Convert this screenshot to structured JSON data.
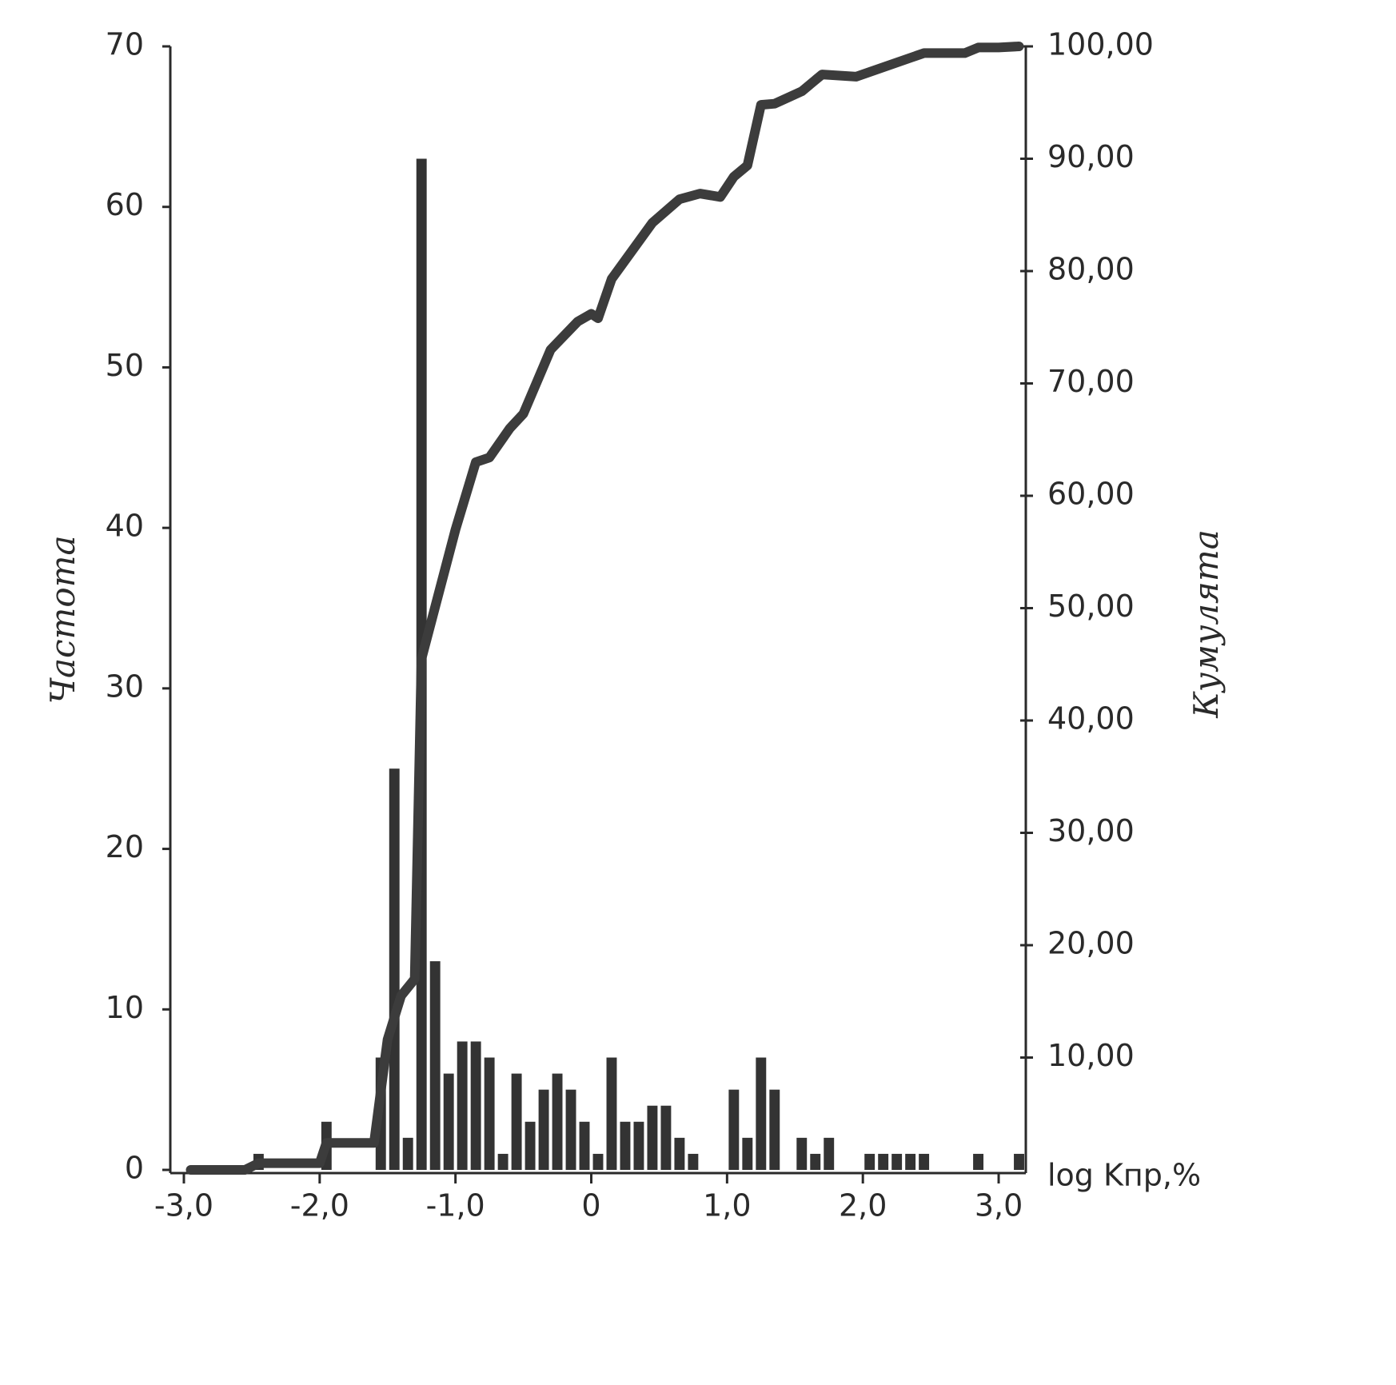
{
  "chart_data": {
    "type": "histogram",
    "y_label": "Частота",
    "y2_label": "Кумулята",
    "x_label": "log Kпр,%",
    "color": "#333333",
    "bins": [
      -3,
      -2.9,
      -2.8,
      -2.7,
      -2.6,
      -2.5,
      -2.4,
      -2.3,
      -2.2,
      -2.1,
      -2,
      -1.9,
      -1.8,
      -1.7,
      -1.6,
      -1.5,
      -1.4,
      -1.3,
      -1.2,
      -1.1,
      -1,
      -0.9,
      -0.8,
      -0.7,
      -0.6,
      -0.5,
      -0.4,
      -0.3,
      -0.2,
      -0.1,
      0,
      0.1,
      0.2,
      0.3,
      0.4,
      0.5,
      0.6,
      0.7,
      0.8,
      0.9,
      1,
      1.1,
      1.2,
      1.3,
      1.4,
      1.5,
      1.6,
      1.7,
      1.8,
      1.9,
      2,
      2.1,
      2.2,
      2.3,
      2.4,
      2.5,
      2.6,
      2.7,
      2.8,
      2.9,
      3,
      3.1,
      3.2
    ],
    "values": [
      0,
      0,
      0,
      0,
      0,
      1,
      0,
      0,
      0,
      0,
      3,
      0,
      0,
      0,
      7,
      25,
      2,
      63,
      13,
      6,
      8,
      8,
      7,
      1,
      6,
      3,
      5,
      6,
      5,
      3,
      1,
      7,
      3,
      3,
      4,
      4,
      2,
      1,
      0,
      0,
      5,
      2,
      7,
      5,
      0,
      2,
      1,
      2,
      0,
      0,
      1,
      1,
      1,
      1,
      1,
      0,
      0,
      0,
      1,
      0,
      0,
      1
    ],
    "series": [
      {
        "type": "line",
        "axis": "y2",
        "color": "#3c3c3c",
        "x": [
          -2.95,
          -2.55,
          -2.45,
          -2.0,
          -1.95,
          -1.6,
          -1.5,
          -1.4,
          -1.3,
          -1.25,
          -1.0,
          -0.85,
          -0.75,
          -0.6,
          -0.5,
          -0.3,
          -0.1,
          0,
          0.05,
          0.15,
          0.45,
          0.65,
          0.8,
          0.95,
          1.05,
          1.15,
          1.25,
          1.35,
          1.55,
          1.7,
          1.95,
          2.45,
          2.75,
          2.85,
          3.0,
          3.15
        ],
        "values": [
          0,
          0,
          0.6,
          0.6,
          2.4,
          2.4,
          11.6,
          15.5,
          17,
          45.5,
          57,
          63,
          63.4,
          66,
          67.3,
          73,
          75.5,
          76.2,
          75.8,
          79.3,
          84.3,
          86.4,
          86.9,
          86.6,
          88.4,
          89.4,
          94.8,
          94.9,
          96,
          97.5,
          97.3,
          99.4,
          99.4,
          99.9,
          99.9,
          100
        ]
      }
    ],
    "xlim": [
      -3.1,
      3.2
    ],
    "xticks": [
      {
        "value": -3,
        "label": "-3,0"
      },
      {
        "value": -2,
        "label": "-2,0"
      },
      {
        "value": -1,
        "label": "-1,0"
      },
      0,
      {
        "value": 1,
        "label": "1,0"
      },
      {
        "value": 2,
        "label": "2,0"
      },
      {
        "value": 3,
        "label": "3,0"
      }
    ],
    "ylim": [
      0,
      70
    ],
    "yticks": [
      0,
      10,
      20,
      30,
      40,
      50,
      60,
      70
    ],
    "y2lim": [
      0,
      100
    ],
    "y2ticks": [
      {
        "value": 10,
        "label": "10,00"
      },
      {
        "value": 20,
        "label": "20,00"
      },
      {
        "value": 30,
        "label": "30,00"
      },
      {
        "value": 40,
        "label": "40,00"
      },
      {
        "value": 50,
        "label": "50,00"
      },
      {
        "value": 60,
        "label": "60,00"
      },
      {
        "value": 70,
        "label": "70,00"
      },
      {
        "value": 80,
        "label": "80,00"
      },
      {
        "value": 90,
        "label": "90,00"
      },
      {
        "value": 100,
        "label": "100,00"
      }
    ]
  }
}
